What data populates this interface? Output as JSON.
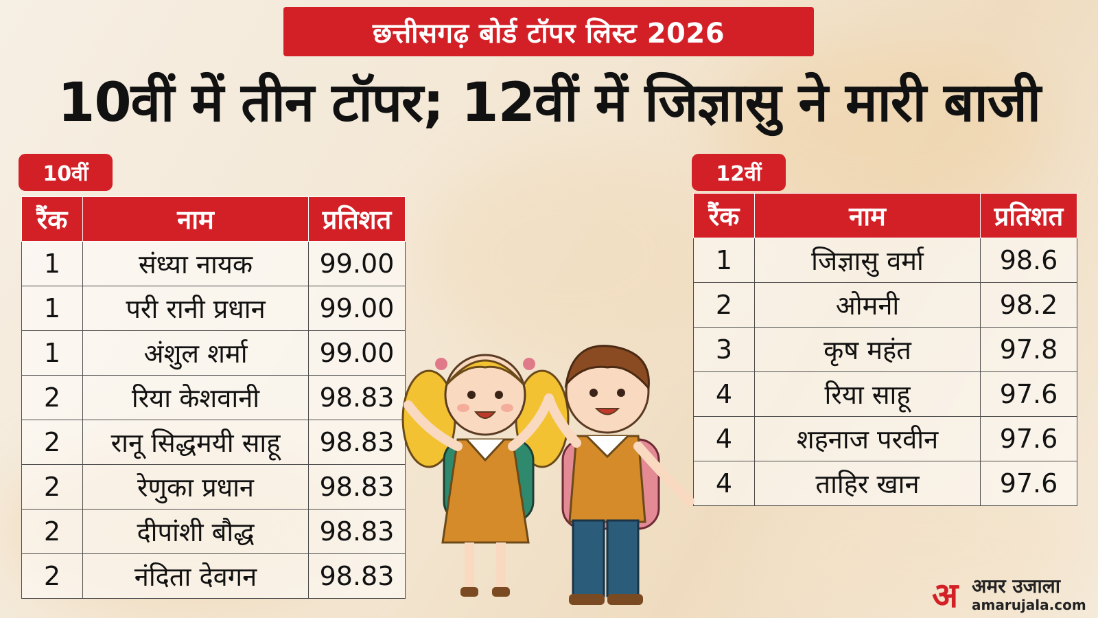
{
  "kicker": "छत्तीसगढ़ बोर्ड टॉपर लिस्ट 2026",
  "headline": "10वीं में तीन टॉपर; 12वीं में जिज्ञासु ने मारी बाजी",
  "class10": {
    "tag": "10वीं",
    "headers": {
      "rank": "रैंक",
      "name": "नाम",
      "percent": "प्रतिशत"
    },
    "rows": [
      {
        "rank": "1",
        "name": "संध्या नायक",
        "percent": "99.00"
      },
      {
        "rank": "1",
        "name": "परी रानी प्रधान",
        "percent": "99.00"
      },
      {
        "rank": "1",
        "name": "अंशुल शर्मा",
        "percent": "99.00"
      },
      {
        "rank": "2",
        "name": "रिया केशवानी",
        "percent": "98.83"
      },
      {
        "rank": "2",
        "name": "रानू सिद्धमयी साहू",
        "percent": "98.83"
      },
      {
        "rank": "2",
        "name": "रेणुका प्रधान",
        "percent": "98.83"
      },
      {
        "rank": "2",
        "name": "दीपांशी बौद्ध",
        "percent": "98.83"
      },
      {
        "rank": "2",
        "name": "नंदिता देवगन",
        "percent": "98.83"
      }
    ]
  },
  "class12": {
    "tag": "12वीं",
    "headers": {
      "rank": "रैंक",
      "name": "नाम",
      "percent": "प्रतिशत"
    },
    "rows": [
      {
        "rank": "1",
        "name": "जिज्ञासु वर्मा",
        "percent": "98.6"
      },
      {
        "rank": "2",
        "name": "ओमनी",
        "percent": "98.2"
      },
      {
        "rank": "3",
        "name": "कृष महंत",
        "percent": "97.8"
      },
      {
        "rank": "4",
        "name": "रिया साहू",
        "percent": "97.6"
      },
      {
        "rank": "4",
        "name": "शहनाज परवीन",
        "percent": "97.6"
      },
      {
        "rank": "4",
        "name": "ताहिर खान",
        "percent": "97.6"
      }
    ]
  },
  "logo": {
    "mark": "अ",
    "name": "अमर उजाला",
    "url": "amarujala.com"
  },
  "colors": {
    "accent": "#d32027",
    "text": "#111111"
  },
  "illustration": "cartoon-school-kids-illustration"
}
